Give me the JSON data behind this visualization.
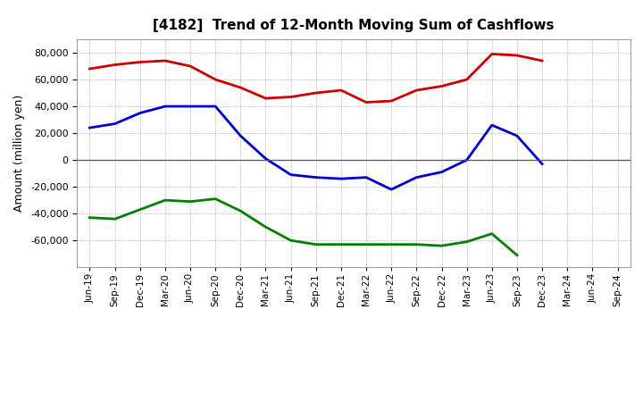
{
  "title": "[4182]  Trend of 12-Month Moving Sum of Cashflows",
  "ylabel": "Amount (million yen)",
  "xlabels": [
    "Jun-19",
    "Sep-19",
    "Dec-19",
    "Mar-20",
    "Jun-20",
    "Sep-20",
    "Dec-20",
    "Mar-21",
    "Jun-21",
    "Sep-21",
    "Dec-21",
    "Mar-22",
    "Jun-22",
    "Sep-22",
    "Dec-22",
    "Mar-23",
    "Jun-23",
    "Sep-23",
    "Dec-23",
    "Mar-24",
    "Jun-24",
    "Sep-24"
  ],
  "operating": [
    68000,
    71000,
    73000,
    74000,
    70000,
    60000,
    54000,
    46000,
    47000,
    50000,
    52000,
    43000,
    44000,
    52000,
    55000,
    60000,
    79000,
    78000,
    74000,
    null,
    null,
    null
  ],
  "investing": [
    -43000,
    -44000,
    -37000,
    -30000,
    -31000,
    -29000,
    -38000,
    -50000,
    -60000,
    -63000,
    -63000,
    -63000,
    -63000,
    -63000,
    -64000,
    -61000,
    -55000,
    -71000,
    null,
    null,
    null,
    null
  ],
  "free": [
    24000,
    27000,
    35000,
    40000,
    40000,
    40000,
    18000,
    1000,
    -11000,
    -13000,
    -14000,
    -13000,
    -22000,
    -13000,
    -9000,
    0,
    26000,
    18000,
    -3000,
    null,
    null,
    null
  ],
  "ylim": [
    -80000,
    90000
  ],
  "yticks": [
    -60000,
    -40000,
    -20000,
    0,
    20000,
    40000,
    60000,
    80000
  ],
  "operating_color": "#cc0000",
  "investing_color": "#008000",
  "free_color": "#0000cc",
  "bg_color": "#ffffff",
  "plot_bg_color": "#ffffff",
  "grid_color": "#999999",
  "linewidth": 2.0
}
